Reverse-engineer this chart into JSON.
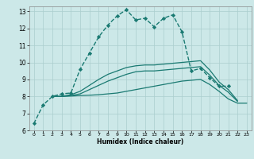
{
  "xlabel": "Humidex (Indice chaleur)",
  "xlim": [
    -0.5,
    23.5
  ],
  "ylim": [
    6,
    13.3
  ],
  "xticks": [
    0,
    1,
    2,
    3,
    4,
    5,
    6,
    7,
    8,
    9,
    10,
    11,
    12,
    13,
    14,
    15,
    16,
    17,
    18,
    19,
    20,
    21,
    22,
    23
  ],
  "yticks": [
    6,
    7,
    8,
    9,
    10,
    11,
    12,
    13
  ],
  "bg_color": "#cce8e8",
  "grid_color": "#aacece",
  "line_color": "#1a7a72",
  "series": [
    {
      "x": [
        0,
        1,
        2,
        3,
        4,
        5,
        6,
        7,
        8,
        9,
        10,
        11,
        12,
        13,
        14,
        15,
        16,
        17,
        18,
        19,
        20,
        21
      ],
      "y": [
        6.4,
        7.5,
        8.0,
        8.15,
        8.2,
        9.6,
        10.55,
        11.5,
        12.2,
        12.75,
        13.1,
        12.5,
        12.6,
        12.1,
        12.6,
        12.8,
        11.8,
        9.5,
        9.65,
        9.1,
        8.6,
        8.6
      ],
      "marker": "D",
      "markersize": 2.2,
      "linewidth": 1.0,
      "linestyle": "--"
    },
    {
      "x": [
        2,
        3,
        4,
        5,
        6,
        7,
        8,
        9,
        10,
        11,
        12,
        13,
        14,
        15,
        16,
        17,
        18,
        19,
        20,
        21,
        22,
        23
      ],
      "y": [
        8.0,
        8.0,
        8.02,
        8.05,
        8.07,
        8.1,
        8.15,
        8.2,
        8.3,
        8.4,
        8.5,
        8.6,
        8.7,
        8.8,
        8.9,
        8.95,
        9.0,
        8.7,
        8.3,
        7.85,
        7.6,
        7.6
      ],
      "marker": null,
      "markersize": 0,
      "linewidth": 0.9,
      "linestyle": "-"
    },
    {
      "x": [
        2,
        3,
        4,
        5,
        6,
        7,
        8,
        9,
        10,
        11,
        12,
        13,
        14,
        15,
        16,
        17,
        18,
        19,
        20,
        21,
        22
      ],
      "y": [
        8.0,
        8.0,
        8.05,
        8.15,
        8.4,
        8.65,
        8.9,
        9.1,
        9.3,
        9.45,
        9.5,
        9.5,
        9.55,
        9.6,
        9.65,
        9.7,
        9.75,
        9.25,
        8.65,
        8.25,
        7.7
      ],
      "marker": null,
      "markersize": 0,
      "linewidth": 0.9,
      "linestyle": "-"
    },
    {
      "x": [
        2,
        3,
        4,
        5,
        6,
        7,
        8,
        9,
        10,
        11,
        12,
        13,
        14,
        15,
        16,
        17,
        18,
        19,
        20,
        21,
        22
      ],
      "y": [
        8.0,
        8.0,
        8.1,
        8.3,
        8.65,
        9.0,
        9.3,
        9.5,
        9.7,
        9.8,
        9.85,
        9.85,
        9.9,
        9.95,
        10.0,
        10.05,
        10.1,
        9.55,
        8.85,
        8.4,
        7.75
      ],
      "marker": null,
      "markersize": 0,
      "linewidth": 0.9,
      "linestyle": "-"
    }
  ]
}
